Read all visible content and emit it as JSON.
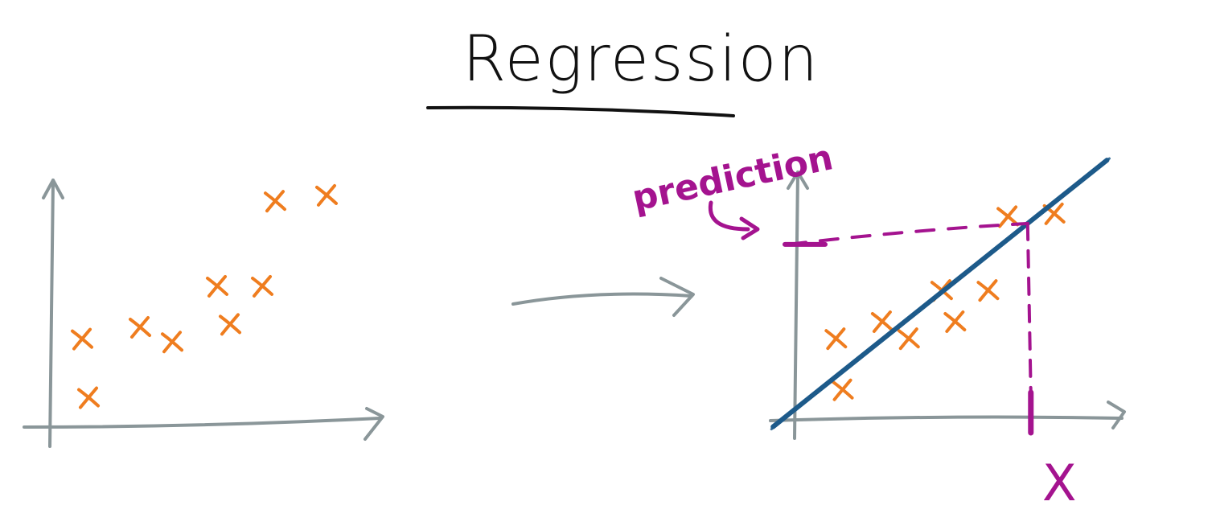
{
  "title": "Regression",
  "prediction_label": "prediction",
  "x_label": "X",
  "colors": {
    "ink": "#111111",
    "axis": "#8a9699",
    "points": "#ef7d1f",
    "regression_line": "#1d5a8a",
    "prediction": "#a4138f"
  },
  "chart_data": [
    {
      "type": "scatter",
      "points": [
        {
          "x": 0.6,
          "y": 1.0
        },
        {
          "x": 0.5,
          "y": 3.0
        },
        {
          "x": 1.4,
          "y": 3.4
        },
        {
          "x": 1.9,
          "y": 2.9
        },
        {
          "x": 2.8,
          "y": 3.5
        },
        {
          "x": 2.6,
          "y": 4.8
        },
        {
          "x": 3.3,
          "y": 4.8
        },
        {
          "x": 3.5,
          "y": 7.7
        },
        {
          "x": 4.3,
          "y": 7.9
        }
      ],
      "xlim": [
        0,
        5
      ],
      "ylim": [
        0,
        8.5
      ]
    },
    {
      "type": "scatter",
      "points": [
        {
          "x": 0.7,
          "y": 1.0
        },
        {
          "x": 0.6,
          "y": 2.8
        },
        {
          "x": 1.3,
          "y": 3.4
        },
        {
          "x": 1.7,
          "y": 2.8
        },
        {
          "x": 2.4,
          "y": 3.4
        },
        {
          "x": 2.2,
          "y": 4.5
        },
        {
          "x": 2.9,
          "y": 4.5
        },
        {
          "x": 3.2,
          "y": 7.1
        },
        {
          "x": 3.9,
          "y": 7.2
        }
      ],
      "regression_line": {
        "slope": 1.86,
        "intercept": 0.35
      },
      "prediction_x": 3.5,
      "xlim": [
        0,
        4.5
      ],
      "ylim": [
        0,
        8.5
      ]
    }
  ],
  "icons": {
    "transition_arrow": "arrow-right-icon"
  }
}
